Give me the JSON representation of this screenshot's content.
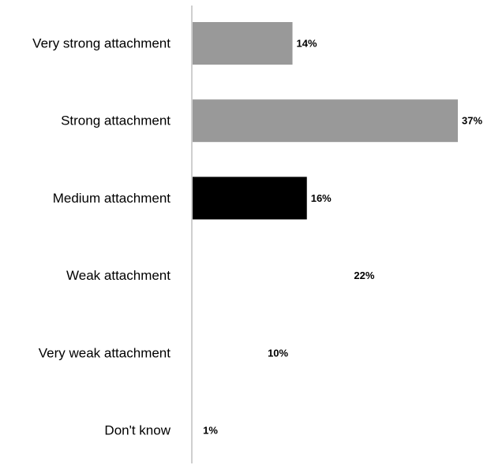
{
  "chart_data": {
    "type": "bar",
    "orientation": "horizontal",
    "categories": [
      "Very strong attachment",
      "Strong attachment",
      "Medium attachment",
      "Weak attachment",
      "Very weak attachment",
      "Don't know"
    ],
    "values": [
      14,
      37,
      16,
      22,
      10,
      1
    ],
    "value_labels": [
      "14%",
      "37%",
      "16%",
      "22%",
      "10%",
      "1%"
    ],
    "bar_colors": [
      "#999999",
      "#999999",
      "#000000",
      "#ffffff",
      "#ffffff",
      "#ffffff"
    ],
    "axis_color": "#bfbfbf",
    "xlim": [
      0,
      37
    ],
    "title": "",
    "xlabel": "",
    "ylabel": "",
    "grid": false,
    "legend": "none"
  }
}
